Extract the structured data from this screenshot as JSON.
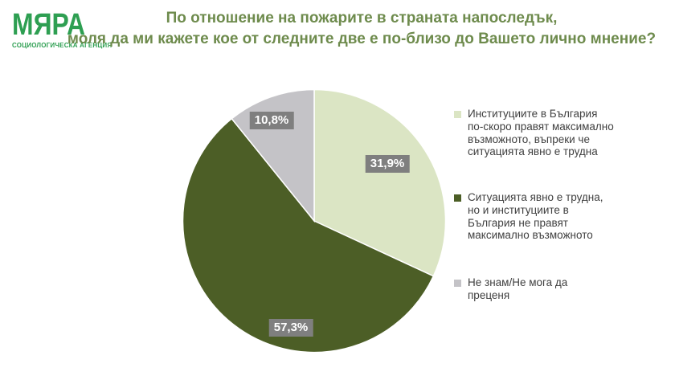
{
  "logo": {
    "name": "МЯРА",
    "subtitle": "СОЦИОЛОГИЧЕСКА АГЕНЦИЯ",
    "color": "#2E9F52"
  },
  "title": {
    "line1": "По отношение на пожарите в страната напоследък,",
    "line2": "моля да ми кажете кое от следните две е по-близо до Вашето лично мнение?",
    "color": "#6E8B4D"
  },
  "chart_data": {
    "type": "pie",
    "title": "По отношение на пожарите в страната напоследък, моля да ми кажете кое от следните две е по-близо до Вашето лично мнение?",
    "categories": [
      "Институциите в България по-скоро правят максимално възможното, въпреки че ситуацията явно е трудна",
      "Ситуацията явно е трудна, но и институциите в България не правят максимално възможното",
      "Не знам/Не мога да преценя"
    ],
    "values": [
      31.9,
      57.3,
      10.8
    ],
    "value_labels": [
      "31,9%",
      "57,3%",
      "10,8%"
    ],
    "colors": [
      "#DBE5C4",
      "#4C5E26",
      "#C4C3C7"
    ],
    "value_label_bg": "#7F7F7F",
    "value_label_color": "#FFFFFF",
    "start_angle_deg": 0,
    "direction": "clockwise",
    "legend_position": "right",
    "grid": false
  }
}
